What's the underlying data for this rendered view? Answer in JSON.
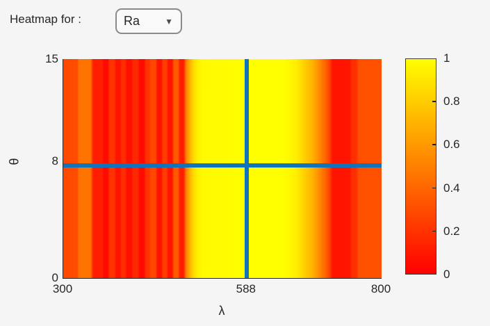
{
  "header": {
    "label": "Heatmap for :",
    "dropdown": {
      "value": "Ra",
      "caret_icon": "▼"
    }
  },
  "colors": {
    "background": "#f5f5f5",
    "text": "#262626",
    "axis_line": "#262626",
    "crosshair_blue": "#1074bc",
    "dropdown_border": "#8a8a8a",
    "colormap_low": "#ff0000",
    "colormap_high": "#ffff00"
  },
  "chart_data": {
    "type": "heatmap",
    "title": "",
    "xlabel": "λ",
    "ylabel": "θ",
    "x_range": [
      300,
      800
    ],
    "y_range": [
      0,
      15
    ],
    "x_ticks": [
      300,
      588,
      800
    ],
    "y_ticks": [
      0,
      8,
      15
    ],
    "grid": false,
    "colorbar": {
      "range": [
        0,
        1
      ],
      "ticks": [
        0,
        0.2,
        0.4,
        0.6,
        0.8,
        1
      ],
      "colormap": "autumn (red to yellow)",
      "stops": [
        {
          "pos": 0,
          "color": "#ff0000"
        },
        {
          "pos": 1,
          "color": "#ffff00"
        }
      ]
    },
    "crosshair": {
      "lambda": 588,
      "theta": 7.7,
      "color": "#1074bc",
      "thickness_px": 6
    },
    "value_model": "values form vertical stripes: constant over θ, varying with λ",
    "profile_format": "[wavelength_nm, value_0_to_1]",
    "profile": [
      [
        300,
        0.28
      ],
      [
        322,
        0.3
      ],
      [
        325,
        0.45
      ],
      [
        343,
        0.45
      ],
      [
        347,
        0.12
      ],
      [
        361,
        0.12
      ],
      [
        364,
        0.04
      ],
      [
        370,
        0.04
      ],
      [
        373,
        0.2
      ],
      [
        380,
        0.2
      ],
      [
        383,
        0.08
      ],
      [
        389,
        0.08
      ],
      [
        392,
        0.18
      ],
      [
        397,
        0.18
      ],
      [
        400,
        0.06
      ],
      [
        407,
        0.06
      ],
      [
        410,
        0.16
      ],
      [
        417,
        0.16
      ],
      [
        420,
        0.04
      ],
      [
        427,
        0.04
      ],
      [
        430,
        0.2
      ],
      [
        435,
        0.2
      ],
      [
        438,
        0.28
      ],
      [
        445,
        0.28
      ],
      [
        448,
        0.08
      ],
      [
        454,
        0.08
      ],
      [
        457,
        0.24
      ],
      [
        462,
        0.24
      ],
      [
        465,
        0.08
      ],
      [
        471,
        0.08
      ],
      [
        474,
        0.35
      ],
      [
        480,
        0.35
      ],
      [
        483,
        0.12
      ],
      [
        489,
        0.12
      ],
      [
        493,
        0.5
      ],
      [
        499,
        0.7
      ],
      [
        504,
        0.84
      ],
      [
        511,
        0.94
      ],
      [
        518,
        0.98
      ],
      [
        555,
        0.99
      ],
      [
        588,
        1.0
      ],
      [
        645,
        1.0
      ],
      [
        665,
        0.94
      ],
      [
        678,
        0.82
      ],
      [
        691,
        0.7
      ],
      [
        702,
        0.55
      ],
      [
        712,
        0.39
      ],
      [
        719,
        0.24
      ],
      [
        723,
        0.08
      ],
      [
        750,
        0.08
      ],
      [
        753,
        0.18
      ],
      [
        760,
        0.18
      ],
      [
        764,
        0.31
      ],
      [
        800,
        0.32
      ]
    ]
  }
}
